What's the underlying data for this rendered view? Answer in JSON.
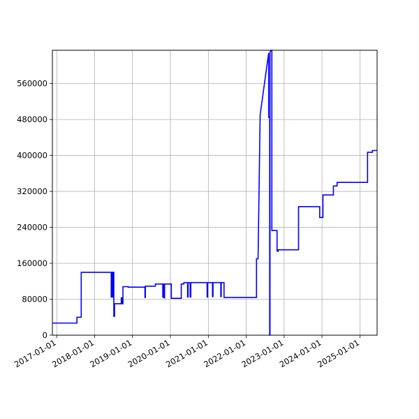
{
  "chart_data": {
    "type": "line",
    "title": "",
    "xlabel": "",
    "ylabel": "",
    "grid": true,
    "series_color": "#0000ff",
    "xlim": [
      "2016-11-20",
      "2025-06-15"
    ],
    "ylim": [
      0,
      634000
    ],
    "xticks": [
      "2017-01-01",
      "2018-01-01",
      "2019-01-01",
      "2020-01-01",
      "2021-01-01",
      "2022-01-01",
      "2023-01-01",
      "2024-01-01",
      "2025-01-01"
    ],
    "yticks": [
      0,
      80000,
      160000,
      240000,
      320000,
      400000,
      480000,
      560000
    ],
    "ytick_labels": [
      "0",
      "80000",
      "160000",
      "240000",
      "320000",
      "400000",
      "480000",
      "560000"
    ],
    "series": [
      {
        "points": [
          [
            "2016-11-20",
            27000
          ],
          [
            "2017-07-15",
            27000
          ],
          [
            "2017-07-15",
            40000
          ],
          [
            "2017-08-25",
            40000
          ],
          [
            "2017-08-25",
            140000
          ],
          [
            "2018-06-10",
            140000
          ],
          [
            "2018-06-10",
            85000
          ],
          [
            "2018-06-15",
            85000
          ],
          [
            "2018-06-15",
            140000
          ],
          [
            "2018-06-25",
            140000
          ],
          [
            "2018-06-25",
            85000
          ],
          [
            "2018-07-01",
            85000
          ],
          [
            "2018-07-01",
            140000
          ],
          [
            "2018-07-05",
            140000
          ],
          [
            "2018-07-05",
            42000
          ],
          [
            "2018-07-12",
            42000
          ],
          [
            "2018-07-12",
            70000
          ],
          [
            "2018-09-15",
            70000
          ],
          [
            "2018-09-15",
            83000
          ],
          [
            "2018-09-20",
            83000
          ],
          [
            "2018-09-20",
            70000
          ],
          [
            "2018-10-01",
            70000
          ],
          [
            "2018-10-01",
            108000
          ],
          [
            "2018-11-20",
            108000
          ],
          [
            "2018-11-20",
            107000
          ],
          [
            "2019-05-01",
            107000
          ],
          [
            "2019-05-01",
            84000
          ],
          [
            "2019-05-05",
            84000
          ],
          [
            "2019-05-05",
            109000
          ],
          [
            "2019-08-10",
            109000
          ],
          [
            "2019-08-10",
            114000
          ],
          [
            "2019-10-20",
            114000
          ],
          [
            "2019-10-20",
            85000
          ],
          [
            "2019-10-26",
            85000
          ],
          [
            "2019-10-26",
            114000
          ],
          [
            "2019-11-01",
            114000
          ],
          [
            "2019-11-01",
            83000
          ],
          [
            "2019-11-06",
            83000
          ],
          [
            "2019-11-06",
            114000
          ],
          [
            "2020-01-10",
            114000
          ],
          [
            "2020-01-10",
            82000
          ],
          [
            "2020-04-15",
            82000
          ],
          [
            "2020-04-15",
            114000
          ],
          [
            "2020-05-10",
            114000
          ],
          [
            "2020-05-10",
            117000
          ],
          [
            "2020-06-15",
            117000
          ],
          [
            "2020-06-15",
            85000
          ],
          [
            "2020-06-20",
            85000
          ],
          [
            "2020-06-20",
            117000
          ],
          [
            "2020-07-10",
            117000
          ],
          [
            "2020-07-10",
            85000
          ],
          [
            "2020-07-16",
            85000
          ],
          [
            "2020-07-16",
            117000
          ],
          [
            "2020-12-20",
            117000
          ],
          [
            "2020-12-20",
            85000
          ],
          [
            "2020-12-25",
            85000
          ],
          [
            "2020-12-25",
            117000
          ],
          [
            "2021-02-10",
            117000
          ],
          [
            "2021-02-10",
            86000
          ],
          [
            "2021-02-15",
            86000
          ],
          [
            "2021-02-15",
            117000
          ],
          [
            "2021-05-01",
            117000
          ],
          [
            "2021-05-01",
            86000
          ],
          [
            "2021-05-05",
            86000
          ],
          [
            "2021-05-05",
            117000
          ],
          [
            "2021-06-01",
            117000
          ],
          [
            "2021-06-01",
            84000
          ],
          [
            "2022-04-10",
            84000
          ],
          [
            "2022-04-10",
            170000
          ],
          [
            "2022-04-25",
            170000
          ],
          [
            "2022-05-15",
            490000
          ],
          [
            "2022-08-05",
            628000
          ],
          [
            "2022-08-05",
            485000
          ],
          [
            "2022-08-15",
            485000
          ],
          [
            "2022-08-15",
            0
          ],
          [
            "2022-08-18",
            0
          ],
          [
            "2022-08-18",
            630000
          ],
          [
            "2022-08-28",
            634000
          ],
          [
            "2022-08-28",
            634000
          ],
          [
            "2022-09-05",
            634000
          ],
          [
            "2022-09-05",
            233000
          ],
          [
            "2022-10-25",
            233000
          ],
          [
            "2022-10-25",
            187000
          ],
          [
            "2022-11-05",
            187000
          ],
          [
            "2022-11-05",
            190000
          ],
          [
            "2023-05-20",
            190000
          ],
          [
            "2023-05-20",
            286000
          ],
          [
            "2023-12-10",
            286000
          ],
          [
            "2023-12-10",
            262000
          ],
          [
            "2024-01-10",
            262000
          ],
          [
            "2024-01-10",
            312000
          ],
          [
            "2024-04-20",
            312000
          ],
          [
            "2024-04-20",
            332000
          ],
          [
            "2024-05-25",
            332000
          ],
          [
            "2024-05-25",
            340000
          ],
          [
            "2025-03-15",
            340000
          ],
          [
            "2025-03-15",
            407000
          ],
          [
            "2025-05-01",
            407000
          ],
          [
            "2025-05-01",
            411000
          ],
          [
            "2025-06-15",
            411000
          ]
        ]
      }
    ]
  }
}
